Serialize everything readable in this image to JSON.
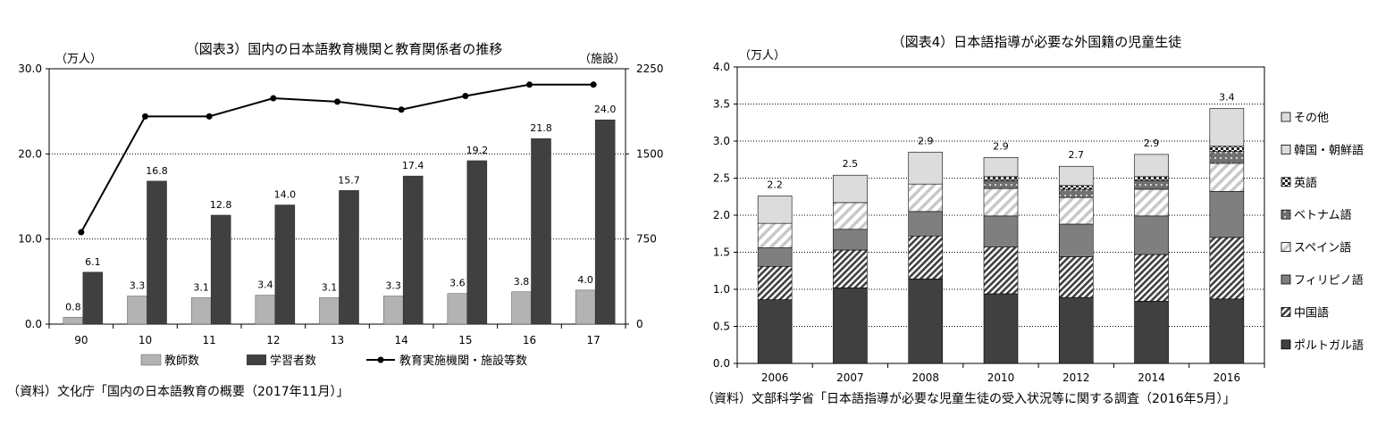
{
  "chart_data": [
    {
      "type": "bar+line",
      "title": "（図表3）国内の日本語教育機関と教育関係者の推移",
      "y_left_unit": "（万人）",
      "y_right_unit": "（施設）",
      "categories": [
        "90",
        "10",
        "11",
        "12",
        "13",
        "14",
        "15",
        "16",
        "17"
      ],
      "y_left_ticks": [
        "0.0",
        "10.0",
        "20.0",
        "30.0"
      ],
      "y_right_ticks": [
        "0",
        "750",
        "1500",
        "2250"
      ],
      "ylim": [
        0,
        30
      ],
      "y2lim": [
        0,
        2250
      ],
      "series": [
        {
          "name": "教師数",
          "kind": "bar",
          "axis": "left",
          "color": "#b3b3b3",
          "values": [
            0.8,
            3.3,
            3.1,
            3.4,
            3.1,
            3.3,
            3.6,
            3.8,
            4.0
          ],
          "labels": [
            "0.8",
            "3.3",
            "3.1",
            "3.4",
            "3.1",
            "3.3",
            "3.6",
            "3.8",
            "4.0"
          ]
        },
        {
          "name": "学習者数",
          "kind": "bar",
          "axis": "left",
          "color": "#404040",
          "values": [
            6.1,
            16.8,
            12.8,
            14.0,
            15.7,
            17.4,
            19.2,
            21.8,
            24.0
          ],
          "labels": [
            "6.1",
            "16.8",
            "12.8",
            "14.0",
            "15.7",
            "17.4",
            "19.2",
            "21.8",
            "24.0"
          ]
        },
        {
          "name": "教育実施機関・施設等数",
          "kind": "line",
          "axis": "right",
          "color": "#000000",
          "values": [
            810,
            1830,
            1830,
            1990,
            1960,
            1890,
            2010,
            2110,
            2110
          ]
        }
      ],
      "grid": "horizontal dotted",
      "legend_position": "bottom",
      "source": "（資料）文化庁「国内の日本語教育の概要（2017年11月）」"
    },
    {
      "type": "stacked_bar",
      "title": "（図表4）日本語指導が必要な外国籍の児童生徒",
      "y_unit": "（万人）",
      "categories": [
        "2006",
        "2007",
        "2008",
        "2010",
        "2012",
        "2014",
        "2016"
      ],
      "y_ticks": [
        "0.0",
        "0.5",
        "1.0",
        "1.5",
        "2.0",
        "2.5",
        "3.0",
        "3.5",
        "4.0"
      ],
      "ylim": [
        0,
        4
      ],
      "totals": [
        "2.2",
        "2.5",
        "2.9",
        "2.9",
        "2.7",
        "2.9",
        "3.4"
      ],
      "series": [
        {
          "name": "ポルトガル語",
          "pattern": "solid-dark",
          "values": [
            0.86,
            1.02,
            1.14,
            0.94,
            0.89,
            0.84,
            0.87
          ]
        },
        {
          "name": "中国語",
          "pattern": "hatch-dense",
          "values": [
            0.45,
            0.51,
            0.58,
            0.63,
            0.55,
            0.63,
            0.83
          ]
        },
        {
          "name": "フィリピノ語",
          "pattern": "solid-mid",
          "values": [
            0.25,
            0.28,
            0.33,
            0.42,
            0.44,
            0.52,
            0.62
          ]
        },
        {
          "name": "スペイン語",
          "pattern": "hatch-light",
          "values": [
            0.33,
            0.36,
            0.37,
            0.37,
            0.36,
            0.36,
            0.38
          ]
        },
        {
          "name": "ベトナム語",
          "pattern": "dots",
          "values": [
            0,
            0,
            0,
            0.11,
            0.11,
            0.12,
            0.16
          ]
        },
        {
          "name": "英語",
          "pattern": "checker",
          "values": [
            0,
            0,
            0,
            0.05,
            0.05,
            0.05,
            0.07
          ]
        },
        {
          "name": "韓国・朝鮮語",
          "pattern": "light",
          "values": [
            0.37,
            0.37,
            0.43,
            0.26,
            0.26,
            0.3,
            0.51
          ]
        },
        {
          "name": "その他",
          "pattern": "light",
          "values": [
            0,
            0,
            0,
            0,
            0,
            0,
            0
          ]
        }
      ],
      "legend_order": [
        "その他",
        "韓国・朝鮮語",
        "英語",
        "ベトナム語",
        "スペイン語",
        "フィリピノ語",
        "中国語",
        "ポルトガル語"
      ],
      "grid": "horizontal dotted",
      "legend_position": "right",
      "source": "（資料）文部科学省「日本語指導が必要な児童生徒の受入状況等に関する調査（2016年5月）」"
    }
  ]
}
